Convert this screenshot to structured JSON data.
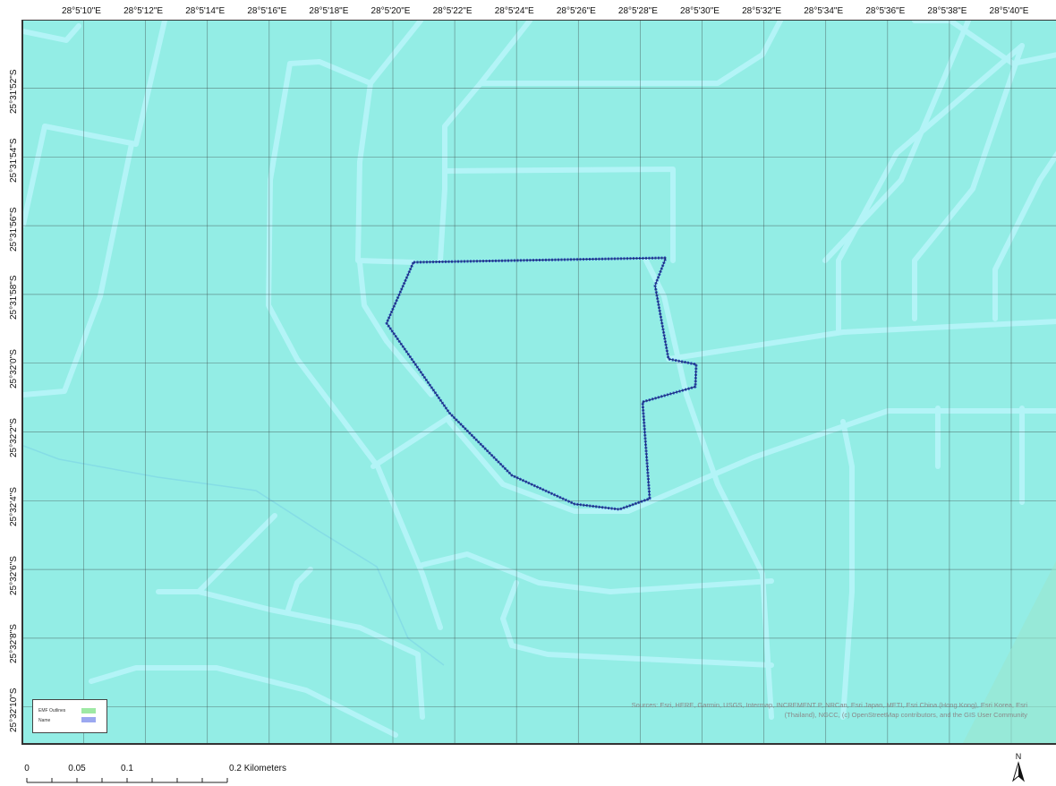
{
  "map": {
    "background_color": "#93ede5",
    "road_color": "#b3f4f7",
    "grid_color": "#3c4a4a",
    "boundary_color": "#2f4fc0",
    "lon_labels": [
      "28°5'10\"E",
      "28°5'12\"E",
      "28°5'14\"E",
      "28°5'16\"E",
      "28°5'18\"E",
      "28°5'20\"E",
      "28°5'22\"E",
      "28°5'24\"E",
      "28°5'26\"E",
      "28°5'28\"E",
      "28°5'30\"E",
      "28°5'32\"E",
      "28°5'34\"E",
      "28°5'36\"E",
      "28°5'38\"E",
      "28°5'40\"E"
    ],
    "lat_labels": [
      "25°31'52\"S",
      "25°31'54\"S",
      "25°31'56\"S",
      "25°31'58\"S",
      "25°32'0\"S",
      "25°32'2\"S",
      "25°32'4\"S",
      "25°32'6\"S",
      "25°32'8\"S",
      "25°32'10\"S"
    ]
  },
  "legend": {
    "items": [
      {
        "label": "EMF Outlines",
        "color": "#9ee9a4"
      },
      {
        "label": "Name",
        "color": "#9ba8f0"
      }
    ]
  },
  "attribution": {
    "line1": "Sources: Esri, HERE, Garmin, USGS, Intermap, INCREMENT P, NRCan, Esri Japan, METI, Esri China (Hong Kong), Esri Korea, Esri",
    "line2": "(Thailand), NGCC, (c) OpenStreetMap contributors, and the GIS User Community"
  },
  "scale_bar": {
    "labels": [
      "0",
      "0.05",
      "0.1",
      "0.2 Kilometers"
    ]
  },
  "north_arrow": {
    "label": "N"
  }
}
